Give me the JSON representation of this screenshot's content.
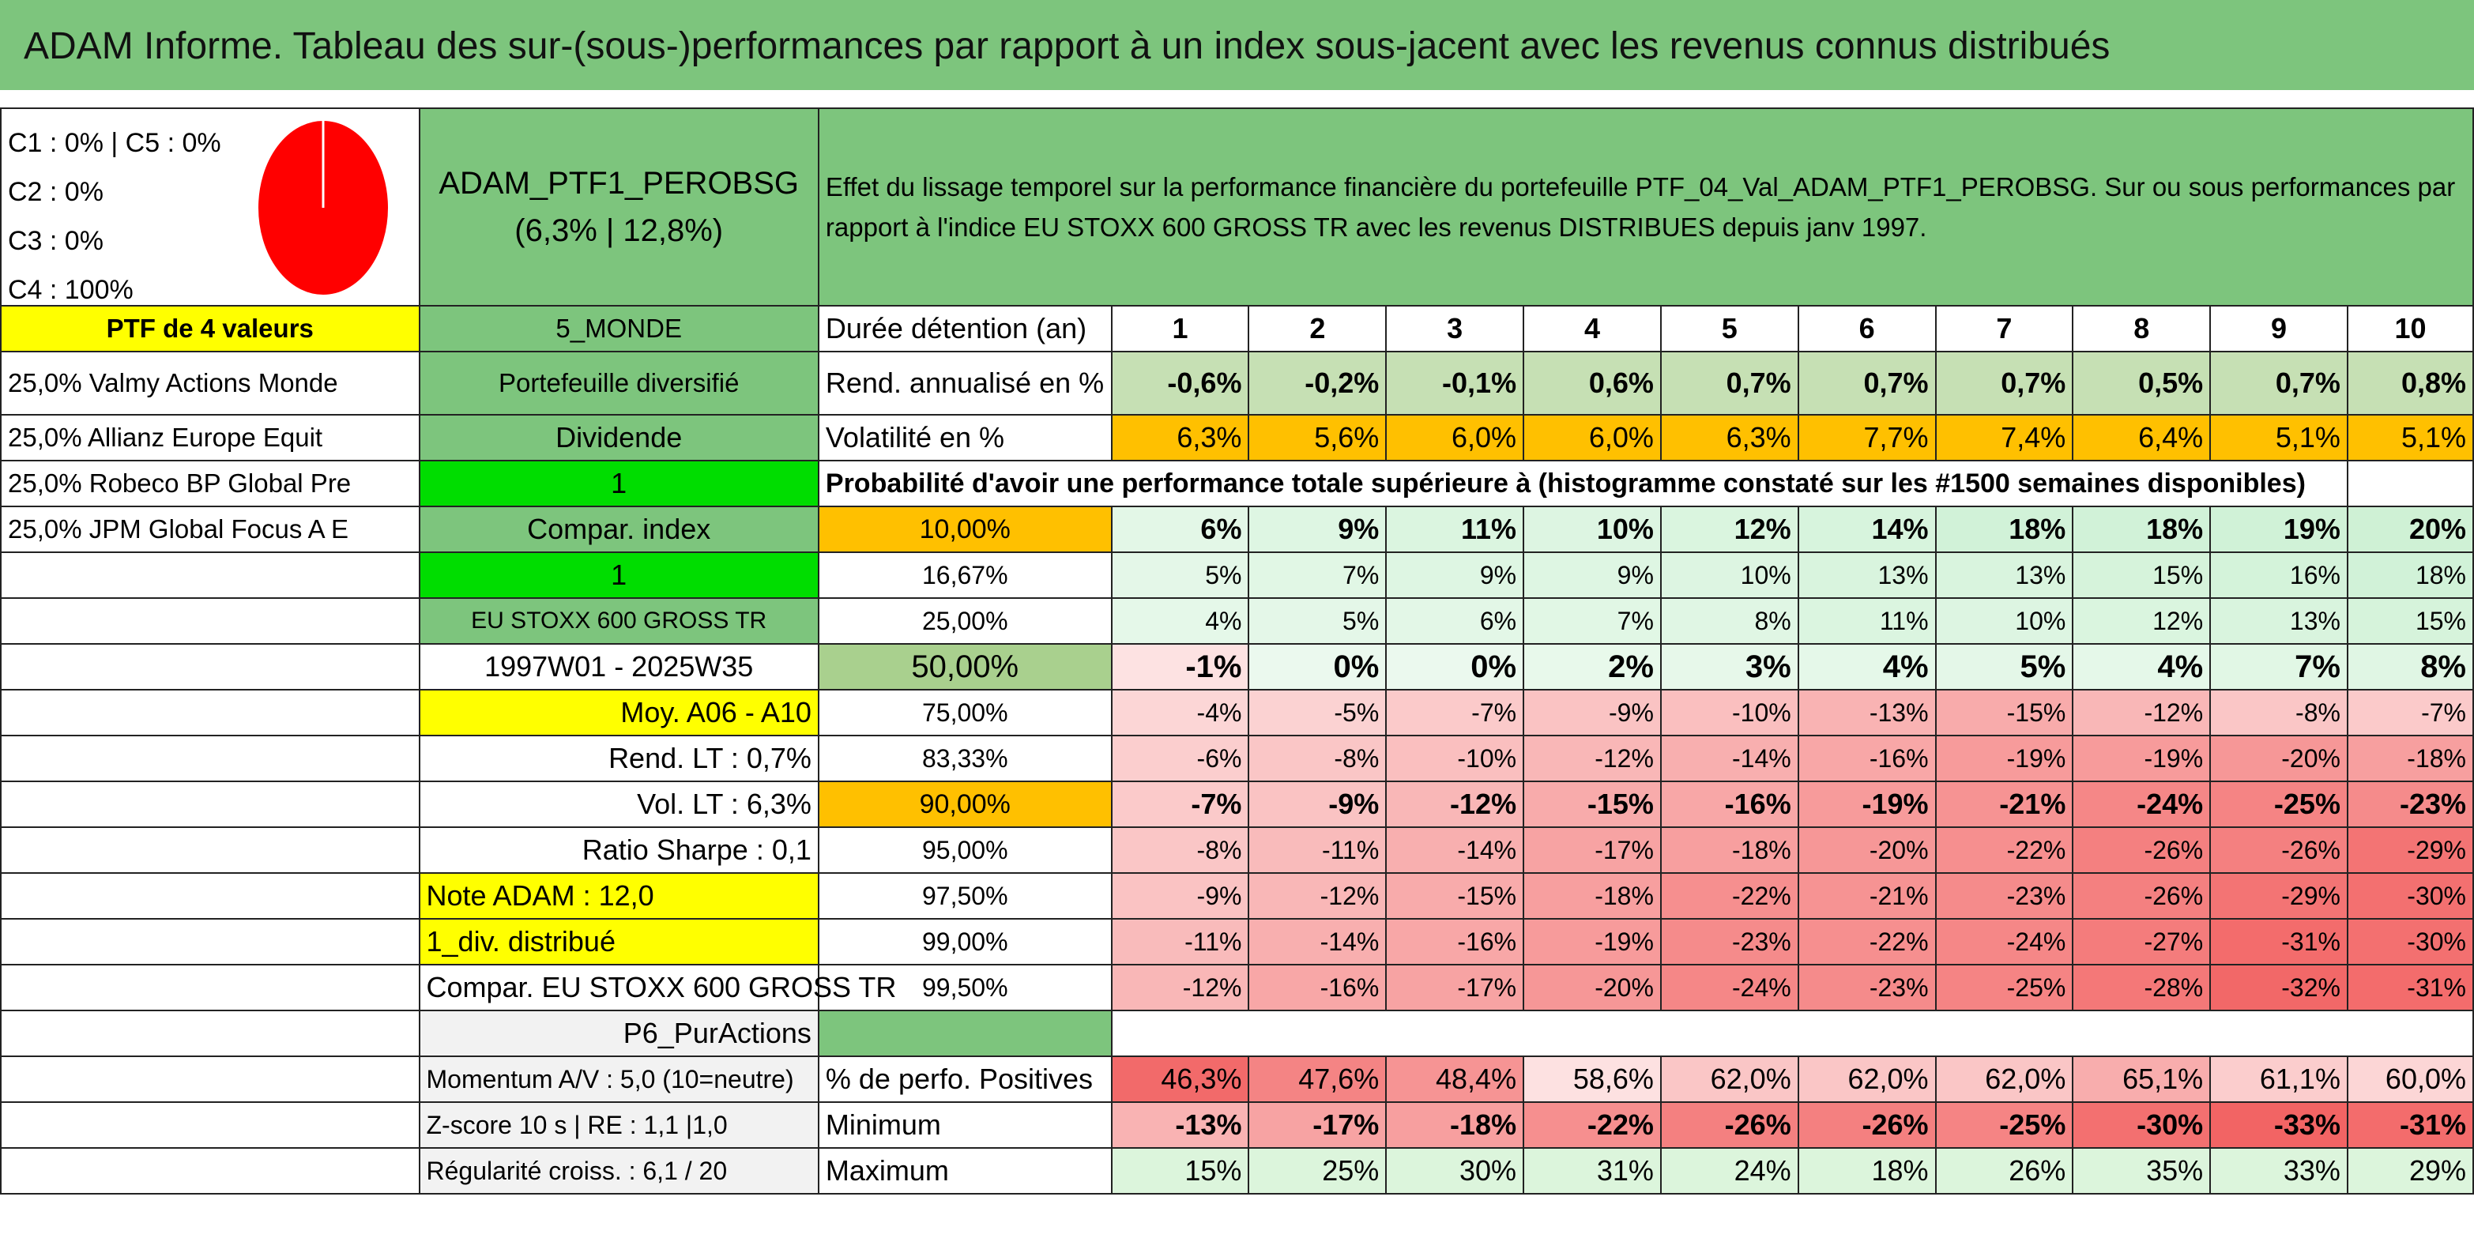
{
  "title": "ADAM Informe. Tableau des sur-(sous-)performances par rapport à un index sous-jacent avec les revenus connus distribués",
  "classes": [
    "C1 : 0% | C5 : 0%",
    "C2 : 0%",
    "C3 : 0%",
    "C4 : 100%"
  ],
  "pie": {
    "color": "#ff0000",
    "share_c4": 100
  },
  "portfolio": {
    "name": "ADAM_PTF1_PEROBSG",
    "stats": "(6,3% | 12,8%)"
  },
  "description": "Effet du lissage temporel sur la performance financière du portefeuille PTF_04_Val_ADAM_PTF1_PEROBSG. Sur ou sous performances par rapport à l'indice EU STOXX 600 GROSS TR avec les revenus DISTRIBUES depuis janv 1997.",
  "left": {
    "ptf_label": "PTF de 4 valeurs",
    "holdings": [
      "25,0% Valmy Actions Monde",
      "25,0% Allianz Europe Equit",
      "25,0% Robeco BP Global Pre",
      "25,0% JPM Global Focus A E"
    ],
    "momentum": "Momentum A/V : 5,0 (10=neutre)",
    "zscore": "Z-score 10 s | RE : 1,1 |1,0",
    "regularite": "Régularité croiss. : 6,1 / 20"
  },
  "mid": {
    "zone": "5_MONDE",
    "type": "Portefeuille diversifié",
    "dividende": "Dividende",
    "one_a": "1",
    "compar": "Compar. index",
    "one_b": "1",
    "index": "EU STOXX 600 GROSS TR",
    "period": "1997W01 - 2025W35",
    "moy": "Moy. A06 - A10",
    "rend_lt": "Rend. LT : 0,7%",
    "vol_lt": "Vol. LT : 6,3%",
    "sharpe": "Ratio Sharpe : 0,1",
    "note": "Note ADAM : 12,0",
    "div": "1_div. distribué",
    "compar_full": "Compar. EU STOXX 600 GROSS TR",
    "p6": "P6_PurActions"
  },
  "table": {
    "duree_label": "Durée détention (an)",
    "years": [
      "1",
      "2",
      "3",
      "4",
      "5",
      "6",
      "7",
      "8",
      "9",
      "10"
    ],
    "rend_label": "Rend. annualisé en %",
    "rend": [
      "-0,6%",
      "-0,2%",
      "-0,1%",
      "0,6%",
      "0,7%",
      "0,7%",
      "0,7%",
      "0,5%",
      "0,7%",
      "0,8%"
    ],
    "vol_label": "Volatilité en %",
    "vol": [
      "6,3%",
      "5,6%",
      "6,0%",
      "6,0%",
      "6,3%",
      "7,7%",
      "7,4%",
      "6,4%",
      "5,1%",
      "5,1%"
    ],
    "proba_label": "Probabilité d'avoir une performance totale supérieure à (histogramme constaté sur les #1500 semaines disponibles)",
    "quantiles": [
      {
        "q": "10,00%",
        "v": [
          "6%",
          "9%",
          "11%",
          "10%",
          "12%",
          "14%",
          "18%",
          "18%",
          "19%",
          "20%"
        ]
      },
      {
        "q": "16,67%",
        "v": [
          "5%",
          "7%",
          "9%",
          "9%",
          "10%",
          "13%",
          "13%",
          "15%",
          "16%",
          "18%"
        ]
      },
      {
        "q": "25,00%",
        "v": [
          "4%",
          "5%",
          "6%",
          "7%",
          "8%",
          "11%",
          "10%",
          "12%",
          "13%",
          "15%"
        ]
      },
      {
        "q": "50,00%",
        "v": [
          "-1%",
          "0%",
          "0%",
          "2%",
          "3%",
          "4%",
          "5%",
          "4%",
          "7%",
          "8%"
        ]
      },
      {
        "q": "75,00%",
        "v": [
          "-4%",
          "-5%",
          "-7%",
          "-9%",
          "-10%",
          "-13%",
          "-15%",
          "-12%",
          "-8%",
          "-7%"
        ]
      },
      {
        "q": "83,33%",
        "v": [
          "-6%",
          "-8%",
          "-10%",
          "-12%",
          "-14%",
          "-16%",
          "-19%",
          "-19%",
          "-20%",
          "-18%"
        ]
      },
      {
        "q": "90,00%",
        "v": [
          "-7%",
          "-9%",
          "-12%",
          "-15%",
          "-16%",
          "-19%",
          "-21%",
          "-24%",
          "-25%",
          "-23%"
        ]
      },
      {
        "q": "95,00%",
        "v": [
          "-8%",
          "-11%",
          "-14%",
          "-17%",
          "-18%",
          "-20%",
          "-22%",
          "-26%",
          "-26%",
          "-29%"
        ]
      },
      {
        "q": "97,50%",
        "v": [
          "-9%",
          "-12%",
          "-15%",
          "-18%",
          "-22%",
          "-21%",
          "-23%",
          "-26%",
          "-29%",
          "-30%"
        ]
      },
      {
        "q": "99,00%",
        "v": [
          "-11%",
          "-14%",
          "-16%",
          "-19%",
          "-23%",
          "-22%",
          "-24%",
          "-27%",
          "-31%",
          "-30%"
        ]
      },
      {
        "q": "99,50%",
        "v": [
          "-12%",
          "-16%",
          "-17%",
          "-20%",
          "-24%",
          "-23%",
          "-25%",
          "-28%",
          "-32%",
          "-31%"
        ]
      }
    ],
    "positives_label": "% de perfo. Positives",
    "positives": [
      "46,3%",
      "47,6%",
      "48,4%",
      "58,6%",
      "62,0%",
      "62,0%",
      "62,0%",
      "65,1%",
      "61,1%",
      "60,0%"
    ],
    "min_label": "Minimum",
    "min": [
      "-13%",
      "-17%",
      "-18%",
      "-22%",
      "-26%",
      "-26%",
      "-25%",
      "-30%",
      "-33%",
      "-31%"
    ],
    "max_label": "Maximum",
    "max": [
      "15%",
      "25%",
      "30%",
      "31%",
      "24%",
      "18%",
      "26%",
      "35%",
      "33%",
      "29%"
    ]
  }
}
